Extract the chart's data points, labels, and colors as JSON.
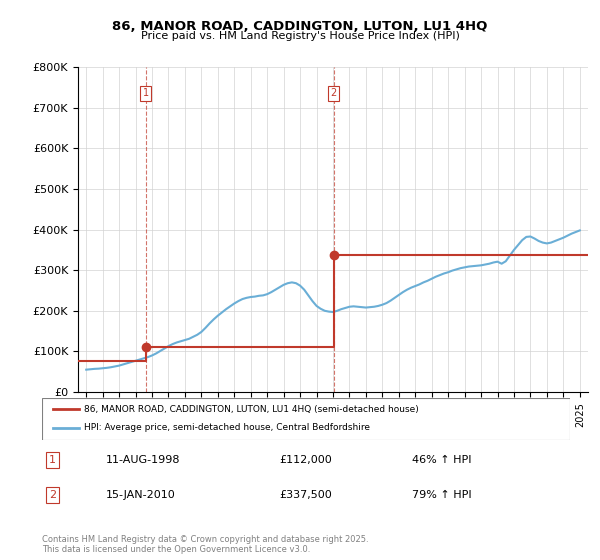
{
  "title": "86, MANOR ROAD, CADDINGTON, LUTON, LU1 4HQ",
  "subtitle": "Price paid vs. HM Land Registry's House Price Index (HPI)",
  "transactions": [
    {
      "date_num": 1998.61,
      "price": 112000,
      "label": "1"
    },
    {
      "date_num": 2010.04,
      "price": 337500,
      "label": "2"
    }
  ],
  "transaction_labels": [
    {
      "num": "1",
      "date": "11-AUG-1998",
      "price": "£112,000",
      "change": "46% ↑ HPI"
    },
    {
      "num": "2",
      "date": "15-JAN-2010",
      "price": "£337,500",
      "change": "79% ↑ HPI"
    }
  ],
  "hpi_line_color": "#6aaed6",
  "price_line_color": "#c0392b",
  "transaction_dot_color": "#c0392b",
  "vline_color": "#c0392b",
  "legend_label_red": "86, MANOR ROAD, CADDINGTON, LUTON, LU1 4HQ (semi-detached house)",
  "legend_label_blue": "HPI: Average price, semi-detached house, Central Bedfordshire",
  "footer": "Contains HM Land Registry data © Crown copyright and database right 2025.\nThis data is licensed under the Open Government Licence v3.0.",
  "ylim": [
    0,
    800000
  ],
  "xlim": [
    1994.5,
    2025.5
  ],
  "yticks": [
    0,
    100000,
    200000,
    300000,
    400000,
    500000,
    600000,
    700000,
    800000
  ],
  "ytick_labels": [
    "£0",
    "£100K",
    "£200K",
    "£300K",
    "£400K",
    "£500K",
    "£600K",
    "£700K",
    "£800K"
  ],
  "xticks": [
    1995,
    1996,
    1997,
    1998,
    1999,
    2000,
    2001,
    2002,
    2003,
    2004,
    2005,
    2006,
    2007,
    2008,
    2009,
    2010,
    2011,
    2012,
    2013,
    2014,
    2015,
    2016,
    2017,
    2018,
    2019,
    2020,
    2021,
    2022,
    2023,
    2024,
    2025
  ],
  "hpi_data": {
    "x": [
      1995.0,
      1995.25,
      1995.5,
      1995.75,
      1996.0,
      1996.25,
      1996.5,
      1996.75,
      1997.0,
      1997.25,
      1997.5,
      1997.75,
      1998.0,
      1998.25,
      1998.5,
      1998.75,
      1999.0,
      1999.25,
      1999.5,
      1999.75,
      2000.0,
      2000.25,
      2000.5,
      2000.75,
      2001.0,
      2001.25,
      2001.5,
      2001.75,
      2002.0,
      2002.25,
      2002.5,
      2002.75,
      2003.0,
      2003.25,
      2003.5,
      2003.75,
      2004.0,
      2004.25,
      2004.5,
      2004.75,
      2005.0,
      2005.25,
      2005.5,
      2005.75,
      2006.0,
      2006.25,
      2006.5,
      2006.75,
      2007.0,
      2007.25,
      2007.5,
      2007.75,
      2008.0,
      2008.25,
      2008.5,
      2008.75,
      2009.0,
      2009.25,
      2009.5,
      2009.75,
      2010.0,
      2010.25,
      2010.5,
      2010.75,
      2011.0,
      2011.25,
      2011.5,
      2011.75,
      2012.0,
      2012.25,
      2012.5,
      2012.75,
      2013.0,
      2013.25,
      2013.5,
      2013.75,
      2014.0,
      2014.25,
      2014.5,
      2014.75,
      2015.0,
      2015.25,
      2015.5,
      2015.75,
      2016.0,
      2016.25,
      2016.5,
      2016.75,
      2017.0,
      2017.25,
      2017.5,
      2017.75,
      2018.0,
      2018.25,
      2018.5,
      2018.75,
      2019.0,
      2019.25,
      2019.5,
      2019.75,
      2020.0,
      2020.25,
      2020.5,
      2020.75,
      2021.0,
      2021.25,
      2021.5,
      2021.75,
      2022.0,
      2022.25,
      2022.5,
      2022.75,
      2023.0,
      2023.25,
      2023.5,
      2023.75,
      2024.0,
      2024.25,
      2024.5,
      2024.75,
      2025.0
    ],
    "y": [
      55000,
      56000,
      57000,
      57500,
      58500,
      59500,
      61000,
      63000,
      65000,
      68000,
      71000,
      74000,
      77000,
      80000,
      83000,
      86000,
      90000,
      95000,
      101000,
      107000,
      113000,
      118000,
      122000,
      125000,
      128000,
      131000,
      136000,
      141000,
      148000,
      158000,
      169000,
      179000,
      188000,
      196000,
      204000,
      211000,
      218000,
      224000,
      229000,
      232000,
      234000,
      235000,
      237000,
      238000,
      241000,
      246000,
      252000,
      258000,
      264000,
      268000,
      270000,
      268000,
      262000,
      252000,
      238000,
      224000,
      212000,
      205000,
      200000,
      198000,
      197000,
      200000,
      204000,
      207000,
      210000,
      211000,
      210000,
      209000,
      208000,
      209000,
      210000,
      212000,
      215000,
      219000,
      225000,
      232000,
      239000,
      246000,
      252000,
      257000,
      261000,
      265000,
      270000,
      274000,
      279000,
      284000,
      288000,
      292000,
      295000,
      299000,
      302000,
      305000,
      307000,
      309000,
      310000,
      311000,
      312000,
      314000,
      316000,
      319000,
      321000,
      316000,
      322000,
      336000,
      350000,
      362000,
      374000,
      382000,
      383000,
      378000,
      372000,
      368000,
      366000,
      368000,
      372000,
      376000,
      380000,
      385000,
      390000,
      394000,
      398000
    ]
  },
  "price_line_data": {
    "x": [
      1995.0,
      1998.61,
      1998.61,
      2010.04,
      2010.04,
      2025.0
    ],
    "y": [
      76800,
      76800,
      112000,
      112000,
      337500,
      337500
    ]
  }
}
